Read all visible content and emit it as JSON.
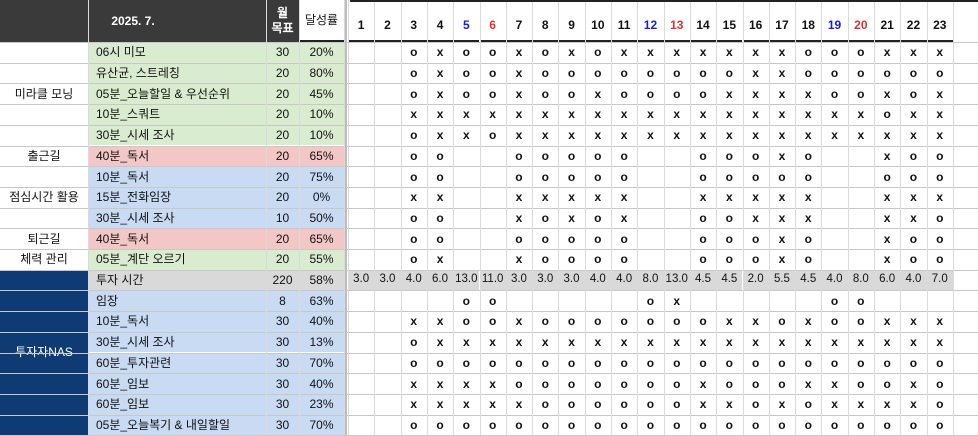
{
  "header": {
    "title": "2025. 7.",
    "goal_label": "월\n목표",
    "rate_label": "달성률",
    "days": [
      {
        "label": "1",
        "color": "#111111"
      },
      {
        "label": "2",
        "color": "#111111"
      },
      {
        "label": "3",
        "color": "#111111"
      },
      {
        "label": "4",
        "color": "#111111"
      },
      {
        "label": "5",
        "color": "#1a1ad6"
      },
      {
        "label": "6",
        "color": "#e03030"
      },
      {
        "label": "7",
        "color": "#111111"
      },
      {
        "label": "8",
        "color": "#111111"
      },
      {
        "label": "9",
        "color": "#111111"
      },
      {
        "label": "10",
        "color": "#111111"
      },
      {
        "label": "11",
        "color": "#111111"
      },
      {
        "label": "12",
        "color": "#1a1ad6"
      },
      {
        "label": "13",
        "color": "#e03030"
      },
      {
        "label": "14",
        "color": "#111111"
      },
      {
        "label": "15",
        "color": "#111111"
      },
      {
        "label": "16",
        "color": "#111111"
      },
      {
        "label": "17",
        "color": "#111111"
      },
      {
        "label": "18",
        "color": "#111111"
      },
      {
        "label": "19",
        "color": "#1a1ad6"
      },
      {
        "label": "20",
        "color": "#e03030"
      },
      {
        "label": "21",
        "color": "#111111"
      },
      {
        "label": "22",
        "color": "#111111"
      },
      {
        "label": "23",
        "color": "#111111"
      }
    ]
  },
  "colors": {
    "green": "#d9ecd0",
    "pink": "#f4c7c7",
    "blue": "#c9daf3",
    "gray": "#d9d9d9",
    "navy": "#0e3b73",
    "header": "#3a3a3a"
  },
  "categories": [
    {
      "label": "미라클 모닝",
      "rows": [
        0,
        4
      ],
      "style": "white"
    },
    {
      "label": "출근길",
      "rows": [
        5,
        5
      ],
      "style": "white"
    },
    {
      "label": "점심시간 활용",
      "rows": [
        6,
        8
      ],
      "style": "white"
    },
    {
      "label": "퇴근길",
      "rows": [
        9,
        9
      ],
      "style": "white"
    },
    {
      "label": "체력 관리",
      "rows": [
        10,
        10
      ],
      "style": "white"
    },
    {
      "label": "투자자NAS",
      "rows": [
        11,
        18
      ],
      "style": "navy"
    }
  ],
  "rows": [
    {
      "task": "06시 미모",
      "goal": "30",
      "rate": "20%",
      "style": "green",
      "marks": [
        "",
        "",
        "o",
        "x",
        "o",
        "o",
        "x",
        "o",
        "x",
        "o",
        "x",
        "x",
        "x",
        "x",
        "x",
        "x",
        "x",
        "o",
        "o",
        "o",
        "x",
        "x",
        "x"
      ]
    },
    {
      "task": "유산균, 스트레칭",
      "goal": "20",
      "rate": "80%",
      "style": "green",
      "marks": [
        "",
        "",
        "o",
        "x",
        "o",
        "o",
        "x",
        "o",
        "o",
        "o",
        "o",
        "o",
        "o",
        "o",
        "o",
        "x",
        "x",
        "o",
        "o",
        "o",
        "o",
        "o",
        "o"
      ]
    },
    {
      "task": "05분_오늘할일 & 우선순위",
      "goal": "20",
      "rate": "45%",
      "style": "green",
      "marks": [
        "",
        "",
        "o",
        "x",
        "o",
        "o",
        "x",
        "o",
        "o",
        "x",
        "o",
        "o",
        "o",
        "o",
        "x",
        "x",
        "x",
        "x",
        "o",
        "o",
        "x",
        "o",
        "x"
      ]
    },
    {
      "task": "10분_스쿼트",
      "goal": "20",
      "rate": "10%",
      "style": "green",
      "marks": [
        "",
        "",
        "x",
        "x",
        "x",
        "x",
        "x",
        "x",
        "x",
        "x",
        "x",
        "x",
        "x",
        "x",
        "x",
        "x",
        "x",
        "x",
        "x",
        "x",
        "o",
        "x",
        "x"
      ]
    },
    {
      "task": "30분_시세 조사",
      "goal": "20",
      "rate": "10%",
      "style": "green",
      "marks": [
        "",
        "",
        "o",
        "x",
        "x",
        "o",
        "x",
        "x",
        "x",
        "x",
        "x",
        "x",
        "x",
        "x",
        "x",
        "x",
        "x",
        "x",
        "x",
        "x",
        "x",
        "x",
        "x"
      ]
    },
    {
      "task": "40분_독서",
      "goal": "20",
      "rate": "65%",
      "style": "pink",
      "marks": [
        "",
        "",
        "o",
        "o",
        "",
        "",
        "o",
        "o",
        "o",
        "o",
        "o",
        "",
        "",
        "o",
        "o",
        "o",
        "x",
        "o",
        "",
        "",
        "x",
        "o",
        "o"
      ]
    },
    {
      "task": "10분_독서",
      "goal": "20",
      "rate": "75%",
      "style": "blue",
      "marks": [
        "",
        "",
        "o",
        "o",
        "",
        "",
        "o",
        "o",
        "o",
        "o",
        "o",
        "",
        "",
        "o",
        "o",
        "o",
        "o",
        "o",
        "",
        "",
        "o",
        "o",
        "o"
      ]
    },
    {
      "task": "15분_전화임장",
      "goal": "20",
      "rate": "0%",
      "style": "blue",
      "marks": [
        "",
        "",
        "x",
        "x",
        "",
        "",
        "x",
        "x",
        "x",
        "x",
        "x",
        "",
        "",
        "x",
        "x",
        "x",
        "x",
        "x",
        "",
        "",
        "x",
        "x",
        "x"
      ]
    },
    {
      "task": "30분_시세 조사",
      "goal": "10",
      "rate": "50%",
      "style": "blue",
      "marks": [
        "",
        "",
        "o",
        "o",
        "",
        "",
        "x",
        "o",
        "x",
        "o",
        "x",
        "",
        "",
        "o",
        "o",
        "x",
        "x",
        "x",
        "",
        "",
        "x",
        "x",
        "o"
      ]
    },
    {
      "task": "40분_독서",
      "goal": "20",
      "rate": "65%",
      "style": "pink",
      "marks": [
        "",
        "",
        "o",
        "o",
        "",
        "",
        "o",
        "o",
        "o",
        "o",
        "o",
        "",
        "",
        "o",
        "o",
        "o",
        "x",
        "o",
        "",
        "",
        "x",
        "o",
        "o"
      ]
    },
    {
      "task": "05분_계단 오르기",
      "goal": "20",
      "rate": "55%",
      "style": "green",
      "marks": [
        "",
        "",
        "o",
        "x",
        "",
        "",
        "x",
        "o",
        "o",
        "o",
        "o",
        "",
        "",
        "o",
        "o",
        "o",
        "x",
        "o",
        "",
        "",
        "x",
        "o",
        "o"
      ]
    },
    {
      "task": "투자 시간",
      "goal": "220",
      "rate": "58%",
      "style": "gray",
      "marks": [
        "3.0",
        "3.0",
        "4.0",
        "6.0",
        "13.0",
        "11.0",
        "3.0",
        "3.0",
        "3.0",
        "4.0",
        "4.0",
        "8.0",
        "13.0",
        "4.5",
        "4.5",
        "2.0",
        "5.5",
        "4.5",
        "4.0",
        "8.0",
        "6.0",
        "4.0",
        "7.0"
      ]
    },
    {
      "task": "임장",
      "goal": "8",
      "rate": "63%",
      "style": "blue",
      "marks": [
        "",
        "",
        "",
        "",
        "o",
        "o",
        "",
        "",
        "",
        "",
        "",
        "o",
        "x",
        "",
        "",
        "",
        "",
        "",
        "o",
        "o",
        "",
        "",
        ""
      ]
    },
    {
      "task": "10분_독서",
      "goal": "30",
      "rate": "40%",
      "style": "blue",
      "marks": [
        "",
        "",
        "x",
        "x",
        "o",
        "o",
        "x",
        "o",
        "o",
        "o",
        "o",
        "o",
        "o",
        "o",
        "x",
        "x",
        "o",
        "x",
        "o",
        "o",
        "x",
        "x",
        "x"
      ]
    },
    {
      "task": "30분_시세 조사",
      "goal": "30",
      "rate": "13%",
      "style": "blue",
      "marks": [
        "",
        "",
        "o",
        "x",
        "x",
        "x",
        "x",
        "x",
        "x",
        "x",
        "x",
        "x",
        "x",
        "x",
        "x",
        "x",
        "x",
        "x",
        "x",
        "x",
        "x",
        "x",
        "x"
      ]
    },
    {
      "task": "60분_투자관련",
      "goal": "30",
      "rate": "70%",
      "style": "blue",
      "marks": [
        "",
        "",
        "o",
        "o",
        "o",
        "o",
        "o",
        "o",
        "o",
        "o",
        "o",
        "o",
        "o",
        "o",
        "o",
        "o",
        "o",
        "o",
        "o",
        "o",
        "o",
        "o",
        "o"
      ]
    },
    {
      "task": "60분_임보",
      "goal": "30",
      "rate": "40%",
      "style": "blue",
      "marks": [
        "",
        "",
        "x",
        "x",
        "x",
        "x",
        "o",
        "o",
        "o",
        "o",
        "o",
        "o",
        "o",
        "x",
        "o",
        "o",
        "o",
        "x",
        "x",
        "o",
        "o",
        "x",
        "o"
      ]
    },
    {
      "task": "60분_임보",
      "goal": "30",
      "rate": "23%",
      "style": "blue",
      "marks": [
        "",
        "",
        "x",
        "x",
        "x",
        "x",
        "x",
        "o",
        "o",
        "o",
        "o",
        "o",
        "o",
        "x",
        "x",
        "o",
        "x",
        "o",
        "x",
        "x",
        "x",
        "x",
        "o"
      ]
    },
    {
      "task": "05분_오늘복기 & 내일할일",
      "goal": "30",
      "rate": "70%",
      "style": "blue",
      "marks": [
        "",
        "",
        "o",
        "o",
        "o",
        "o",
        "o",
        "o",
        "o",
        "o",
        "o",
        "o",
        "o",
        "o",
        "o",
        "o",
        "o",
        "o",
        "o",
        "o",
        "o",
        "o",
        "o"
      ]
    }
  ]
}
